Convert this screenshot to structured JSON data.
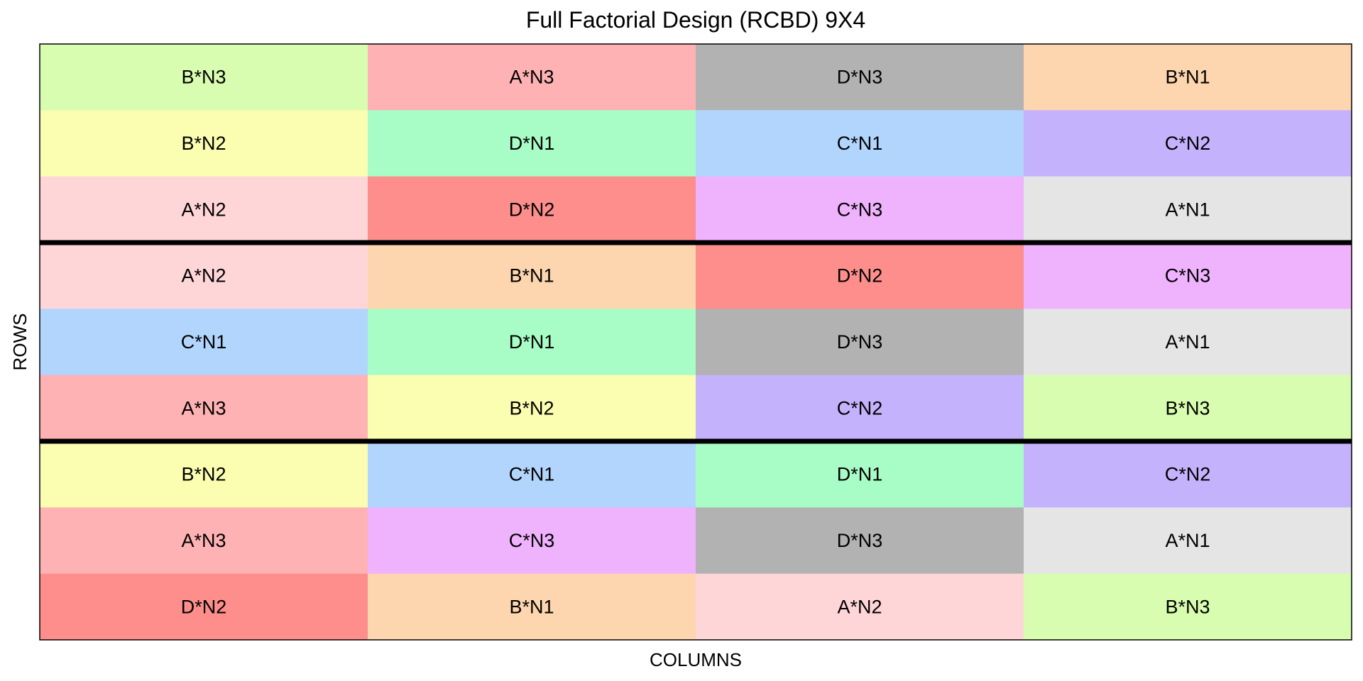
{
  "chart_data": {
    "type": "heatmap",
    "title": "Full Factorial Design (RCBD) 9X4",
    "xlabel": "COLUMNS",
    "ylabel": "ROWS",
    "n_rows": 9,
    "n_cols": 4,
    "block_size_rows": 3,
    "grid": false,
    "cells": [
      [
        "B*N3",
        "A*N3",
        "D*N3",
        "B*N1"
      ],
      [
        "B*N2",
        "D*N1",
        "C*N1",
        "C*N2"
      ],
      [
        "A*N2",
        "D*N2",
        "C*N3",
        "A*N1"
      ],
      [
        "A*N2",
        "B*N1",
        "D*N2",
        "C*N3"
      ],
      [
        "C*N1",
        "D*N1",
        "D*N3",
        "A*N1"
      ],
      [
        "A*N3",
        "B*N2",
        "C*N2",
        "B*N3"
      ],
      [
        "B*N2",
        "C*N1",
        "D*N1",
        "C*N2"
      ],
      [
        "A*N3",
        "C*N3",
        "D*N3",
        "A*N1"
      ],
      [
        "D*N2",
        "B*N1",
        "A*N2",
        "B*N3"
      ]
    ],
    "treatment_colors": {
      "A*N1": "#e5e5e5",
      "A*N2": "#ffd6d8",
      "A*N3": "#ffb2b3",
      "B*N1": "#fdd5ae",
      "B*N2": "#fbfdb1",
      "B*N3": "#d8fdb0",
      "C*N1": "#b2d5fd",
      "C*N2": "#c5b2fd",
      "C*N3": "#efb2fd",
      "D*N1": "#a8fdc6",
      "D*N2": "#fd8e8b",
      "D*N3": "#b2b2b2"
    }
  }
}
